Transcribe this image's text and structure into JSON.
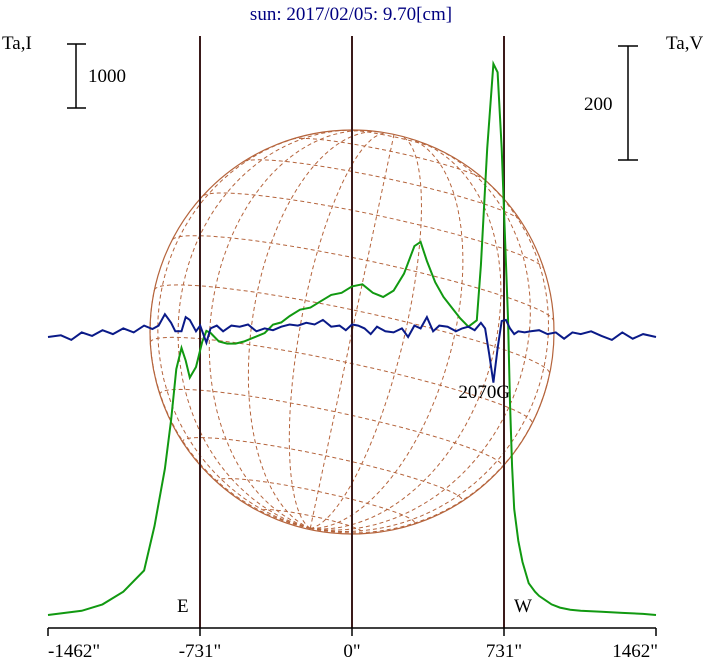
{
  "chart_data": {
    "type": "line",
    "title": "sun: 2017/02/05: 9.70[cm]",
    "left_axis_label": "Ta,I",
    "right_axis_label": "Ta,V",
    "left_scale_bar": "1000",
    "right_scale_bar": "200",
    "x_ticks": [
      {
        "value": -1462,
        "label": "-1462\""
      },
      {
        "value": -731,
        "label": "-731\""
      },
      {
        "value": 0,
        "label": "0\""
      },
      {
        "value": 731,
        "label": "731\""
      },
      {
        "value": 1462,
        "label": "1462\""
      }
    ],
    "xlim": [
      -1462,
      1462
    ],
    "limb_markers": [
      {
        "x": -731,
        "label": "E"
      },
      {
        "x": 0,
        "label": ""
      },
      {
        "x": 731,
        "label": "W"
      }
    ],
    "annotation": {
      "text": "2070G",
      "x": 675
    },
    "grid": false,
    "series": [
      {
        "id": "intensity",
        "color": "#119911",
        "x": [
          -1462,
          -1300,
          -1200,
          -1100,
          -1000,
          -950,
          -900,
          -870,
          -845,
          -820,
          -800,
          -780,
          -750,
          -720,
          -700,
          -680,
          -640,
          -600,
          -560,
          -520,
          -470,
          -420,
          -380,
          -340,
          -300,
          -250,
          -200,
          -150,
          -100,
          -50,
          0,
          50,
          100,
          150,
          200,
          250,
          300,
          330,
          360,
          400,
          440,
          480,
          520,
          560,
          600,
          620,
          650,
          680,
          700,
          720,
          750,
          760,
          770,
          780,
          800,
          820,
          850,
          880,
          900,
          930,
          960,
          1000,
          1050,
          1100,
          1200,
          1300,
          1400,
          1462
        ],
        "y": [
          0,
          20,
          50,
          110,
          210,
          420,
          690,
          920,
          1160,
          1260,
          1200,
          1120,
          1170,
          1290,
          1340,
          1330,
          1290,
          1280,
          1280,
          1290,
          1310,
          1330,
          1370,
          1380,
          1410,
          1440,
          1450,
          1480,
          1510,
          1520,
          1550,
          1560,
          1520,
          1500,
          1530,
          1610,
          1740,
          1760,
          1670,
          1570,
          1500,
          1450,
          1400,
          1360,
          1390,
          1650,
          2200,
          2600,
          2560,
          2200,
          1400,
          1000,
          700,
          500,
          350,
          250,
          150,
          110,
          90,
          70,
          50,
          35,
          25,
          20,
          15,
          10,
          5,
          0
        ]
      },
      {
        "id": "polarization",
        "color": "#0a1a88",
        "x": [
          -1462,
          -1400,
          -1350,
          -1300,
          -1250,
          -1200,
          -1150,
          -1100,
          -1050,
          -1000,
          -960,
          -930,
          -900,
          -870,
          -850,
          -820,
          -800,
          -780,
          -750,
          -730,
          -700,
          -680,
          -650,
          -620,
          -580,
          -540,
          -500,
          -460,
          -420,
          -380,
          -340,
          -300,
          -260,
          -220,
          -180,
          -140,
          -100,
          -60,
          -30,
          0,
          30,
          60,
          90,
          120,
          160,
          200,
          240,
          270,
          300,
          330,
          360,
          390,
          420,
          460,
          500,
          530,
          560,
          590,
          620,
          640,
          660,
          680,
          700,
          720,
          740,
          760,
          780,
          800,
          830,
          860,
          900,
          940,
          980,
          1020,
          1060,
          1100,
          1150,
          1200,
          1250,
          1300,
          1350,
          1400,
          1462
        ],
        "y": [
          0,
          3,
          -5,
          8,
          2,
          12,
          5,
          15,
          8,
          20,
          14,
          20,
          40,
          25,
          10,
          10,
          35,
          30,
          10,
          20,
          -10,
          15,
          20,
          10,
          20,
          18,
          22,
          10,
          15,
          12,
          18,
          22,
          20,
          25,
          22,
          30,
          18,
          20,
          12,
          22,
          20,
          15,
          5,
          18,
          10,
          8,
          15,
          0,
          20,
          15,
          35,
          10,
          20,
          18,
          10,
          15,
          18,
          12,
          25,
          15,
          -30,
          -80,
          -20,
          28,
          30,
          15,
          5,
          10,
          8,
          10,
          12,
          5,
          8,
          -3,
          8,
          5,
          10,
          2,
          -5,
          8,
          -3,
          5,
          0
        ]
      }
    ]
  }
}
